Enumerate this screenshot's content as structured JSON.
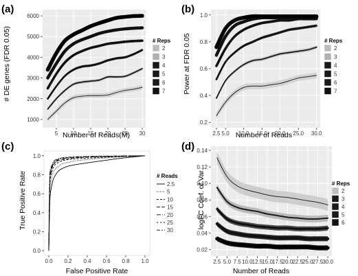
{
  "chart_data": [
    {
      "id": "a",
      "panel_label": "(a)",
      "type": "line",
      "style": "ribbon",
      "background": "#ebebeb",
      "grid": true,
      "xlabel": "Number of Reads(M)",
      "ylabel": "# DE genes (FDR 0.05)",
      "xlim": [
        1,
        31
      ],
      "ylim": [
        600,
        6300
      ],
      "xticks": [
        5,
        10,
        15,
        20,
        25,
        30
      ],
      "xtick_labels": [
        "5",
        "10",
        "15",
        "20",
        "25",
        "30"
      ],
      "yticks": [
        1000,
        2000,
        3000,
        4000,
        5000,
        6000
      ],
      "ytick_labels": [
        "1000",
        "2000",
        "3000",
        "4000",
        "5000",
        "6000"
      ],
      "legend": {
        "title": "# Reps",
        "position": "right",
        "labels": [
          "2",
          "3",
          "4",
          "5",
          "6",
          "7"
        ],
        "colors": [
          "#bdbdbd",
          "#b0b0b0",
          "#1a1a1a",
          "#1a1a1a",
          "#1a1a1a",
          "#111111"
        ]
      },
      "series": [
        {
          "name": "2",
          "color": "#222222",
          "band": "#cfcfcf",
          "width": 1.0,
          "band_half": 110,
          "x": [
            2.5,
            5,
            7.5,
            10,
            12.5,
            15,
            17.5,
            20,
            22.5,
            25,
            27.5,
            30
          ],
          "values": [
            1000,
            1400,
            1800,
            2050,
            2120,
            2150,
            2150,
            2180,
            2300,
            2400,
            2460,
            2550
          ]
        },
        {
          "name": "3",
          "color": "#1a1a1a",
          "band": "#bdbdbd",
          "width": 1.8,
          "band_half": 70,
          "x": [
            2.5,
            5,
            7.5,
            10,
            12.5,
            15,
            17.5,
            20,
            22.5,
            25,
            27.5,
            30
          ],
          "values": [
            1500,
            2000,
            2400,
            2700,
            2800,
            2850,
            2900,
            3050,
            3050,
            3080,
            3250,
            3450
          ]
        },
        {
          "name": "4",
          "color": "#111111",
          "band": "#333333",
          "width": 2.6,
          "band_half": 60,
          "x": [
            2.5,
            5,
            7.5,
            10,
            12.5,
            15,
            17.5,
            20,
            22.5,
            25,
            27.5,
            30
          ],
          "values": [
            2000,
            2600,
            3100,
            3400,
            3550,
            3600,
            3700,
            3850,
            3950,
            4000,
            4150,
            4350
          ]
        },
        {
          "name": "5",
          "color": "#111111",
          "band": "#222222",
          "width": 3.5,
          "band_half": 60,
          "x": [
            2.5,
            5,
            7.5,
            10,
            12.5,
            15,
            17.5,
            20,
            22.5,
            25,
            27.5,
            30
          ],
          "values": [
            2500,
            3200,
            3750,
            4100,
            4300,
            4450,
            4550,
            4650,
            4700,
            4750,
            4780,
            4800
          ]
        },
        {
          "name": "6",
          "color": "#111111",
          "band": "#111111",
          "width": 4.5,
          "band_half": 70,
          "x": [
            2.5,
            5,
            7.5,
            10,
            12.5,
            15,
            17.5,
            20,
            22.5,
            25,
            27.5,
            30
          ],
          "values": [
            3000,
            3700,
            4300,
            4650,
            4850,
            5000,
            5150,
            5250,
            5320,
            5370,
            5400,
            5420
          ]
        },
        {
          "name": "7",
          "color": "#000000",
          "band": "#000000",
          "width": 5.5,
          "band_half": 80,
          "x": [
            2.5,
            5,
            7.5,
            10,
            12.5,
            15,
            17.5,
            20,
            22.5,
            25,
            27.5,
            30
          ],
          "values": [
            3400,
            4200,
            4800,
            5100,
            5300,
            5500,
            5650,
            5780,
            5900,
            5950,
            5990,
            6000
          ]
        }
      ]
    },
    {
      "id": "b",
      "panel_label": "(b)",
      "type": "line",
      "style": "ribbon",
      "background": "#ebebeb",
      "grid": true,
      "xlabel": "Number of Reads",
      "ylabel": "Power at FDR 0.05",
      "xlim": [
        1,
        31
      ],
      "ylim": [
        0.16,
        1.04
      ],
      "xticks": [
        2.5,
        5,
        10,
        15,
        20,
        25,
        30
      ],
      "xtick_labels": [
        "2.5",
        "5.0",
        "10.0",
        "15.0",
        "20.0",
        "25.0",
        "30.0"
      ],
      "yticks": [
        0.2,
        0.4,
        0.6,
        0.8,
        1.0
      ],
      "ytick_labels": [
        "0.2",
        "0.4",
        "0.6",
        "0.8",
        "1.0"
      ],
      "legend": {
        "title": "# Reps",
        "position": "right",
        "labels": [
          "2",
          "3",
          "4",
          "5",
          "6",
          "7"
        ],
        "colors": [
          "#bdbdbd",
          "#b0b0b0",
          "#1a1a1a",
          "#1a1a1a",
          "#1a1a1a",
          "#111111"
        ]
      },
      "series": [
        {
          "name": "2",
          "color": "#222222",
          "band": "#cfcfcf",
          "width": 1.0,
          "band_half": 0.022,
          "x": [
            2.5,
            5,
            7.5,
            10,
            12.5,
            15,
            17.5,
            20,
            22.5,
            25,
            27.5,
            30
          ],
          "values": [
            0.25,
            0.35,
            0.42,
            0.46,
            0.47,
            0.47,
            0.48,
            0.49,
            0.51,
            0.53,
            0.54,
            0.55
          ]
        },
        {
          "name": "3",
          "color": "#1a1a1a",
          "band": "#bdbdbd",
          "width": 1.8,
          "band_half": 0.012,
          "x": [
            2.5,
            5,
            7.5,
            10,
            12.5,
            15,
            17.5,
            20,
            22.5,
            25,
            27.5,
            30
          ],
          "values": [
            0.38,
            0.51,
            0.58,
            0.63,
            0.66,
            0.67,
            0.69,
            0.71,
            0.72,
            0.73,
            0.74,
            0.76
          ]
        },
        {
          "name": "4",
          "color": "#111111",
          "band": "#333333",
          "width": 2.6,
          "band_half": 0.01,
          "x": [
            2.5,
            5,
            7.5,
            10,
            12.5,
            15,
            17.5,
            20,
            22.5,
            25,
            27.5,
            30
          ],
          "values": [
            0.52,
            0.65,
            0.72,
            0.77,
            0.8,
            0.83,
            0.85,
            0.87,
            0.89,
            0.9,
            0.91,
            0.92
          ]
        },
        {
          "name": "5",
          "color": "#111111",
          "band": "#222222",
          "width": 3.5,
          "band_half": 0.01,
          "x": [
            2.5,
            5,
            7.5,
            10,
            12.5,
            15,
            17.5,
            20,
            22.5,
            25,
            27.5,
            30
          ],
          "values": [
            0.62,
            0.75,
            0.84,
            0.89,
            0.92,
            0.94,
            0.95,
            0.96,
            0.96,
            0.97,
            0.97,
            0.97
          ]
        },
        {
          "name": "6",
          "color": "#111111",
          "band": "#111111",
          "width": 4.5,
          "band_half": 0.012,
          "x": [
            2.5,
            5,
            7.5,
            10,
            12.5,
            15,
            17.5,
            20,
            22.5,
            25,
            27.5,
            30
          ],
          "values": [
            0.7,
            0.84,
            0.92,
            0.95,
            0.97,
            0.98,
            0.98,
            0.98,
            0.98,
            0.98,
            0.98,
            0.98
          ]
        },
        {
          "name": "7",
          "color": "#000000",
          "band": "#000000",
          "width": 5.5,
          "band_half": 0.014,
          "x": [
            2.5,
            5,
            7.5,
            10,
            12.5,
            15,
            17.5,
            20,
            22.5,
            25,
            27.5,
            30
          ],
          "values": [
            0.76,
            0.9,
            0.96,
            0.98,
            0.99,
            0.99,
            0.99,
            0.99,
            0.99,
            0.99,
            0.99,
            0.99
          ]
        }
      ]
    },
    {
      "id": "c",
      "panel_label": "(c)",
      "type": "line",
      "style": "roc",
      "background": "#ffffff",
      "grid": false,
      "xlabel": "False Positive Rate",
      "ylabel": "True Positive Rate",
      "xlim": [
        -0.05,
        1.05
      ],
      "ylim": [
        -0.05,
        1.05
      ],
      "xticks": [
        0.0,
        0.2,
        0.4,
        0.6,
        0.8,
        1.0
      ],
      "xtick_labels": [
        "0.0",
        "0.2",
        "0.4",
        "0.6",
        "0.8",
        "1.0"
      ],
      "yticks": [
        0.0,
        0.2,
        0.4,
        0.6,
        0.8,
        1.0
      ],
      "ytick_labels": [
        "0.0",
        "0.2",
        "0.4",
        "0.6",
        "0.8",
        "1.0"
      ],
      "legend": {
        "title": "# Reads",
        "position": "right",
        "labels": [
          "2.5",
          "5",
          "10",
          "15",
          "20",
          "25",
          "30"
        ],
        "dashes": [
          "",
          "1,1.5",
          "3,2",
          "5,2",
          "6,2,1,2",
          "2,3",
          "5,2,2,2"
        ]
      },
      "series": [
        {
          "name": "2.5",
          "color": "#000000",
          "dash": "",
          "x": [
            0.0,
            0.01,
            0.02,
            0.04,
            0.06,
            0.1,
            0.15,
            0.2,
            0.3,
            0.5,
            0.8,
            1.0
          ],
          "values": [
            0.0,
            0.5,
            0.63,
            0.73,
            0.78,
            0.84,
            0.87,
            0.89,
            0.91,
            0.94,
            0.98,
            1.0
          ]
        },
        {
          "name": "5",
          "color": "#000000",
          "dash": "1,1.5",
          "x": [
            0.0,
            0.01,
            0.02,
            0.04,
            0.06,
            0.1,
            0.15,
            0.2,
            0.3,
            0.5,
            0.8,
            1.0
          ],
          "values": [
            0.0,
            0.6,
            0.72,
            0.81,
            0.85,
            0.89,
            0.92,
            0.93,
            0.95,
            0.97,
            0.99,
            1.0
          ]
        },
        {
          "name": "10",
          "color": "#000000",
          "dash": "3,2",
          "x": [
            0.0,
            0.01,
            0.02,
            0.04,
            0.06,
            0.1,
            0.15,
            0.2,
            0.3,
            0.5,
            0.8,
            1.0
          ],
          "values": [
            0.0,
            0.66,
            0.78,
            0.86,
            0.9,
            0.93,
            0.95,
            0.96,
            0.97,
            0.98,
            0.995,
            1.0
          ]
        },
        {
          "name": "15",
          "color": "#000000",
          "dash": "5,2",
          "x": [
            0.0,
            0.01,
            0.02,
            0.04,
            0.06,
            0.1,
            0.15,
            0.2,
            0.3,
            0.5,
            0.8,
            1.0
          ],
          "values": [
            0.0,
            0.7,
            0.81,
            0.89,
            0.92,
            0.95,
            0.96,
            0.97,
            0.98,
            0.99,
            0.997,
            1.0
          ]
        },
        {
          "name": "20",
          "color": "#000000",
          "dash": "6,2,1,2",
          "x": [
            0.0,
            0.01,
            0.02,
            0.04,
            0.06,
            0.1,
            0.15,
            0.2,
            0.3,
            0.5,
            0.8,
            1.0
          ],
          "values": [
            0.0,
            0.72,
            0.83,
            0.9,
            0.93,
            0.96,
            0.97,
            0.98,
            0.985,
            0.99,
            0.998,
            1.0
          ]
        },
        {
          "name": "25",
          "color": "#000000",
          "dash": "2,3",
          "x": [
            0.0,
            0.01,
            0.02,
            0.04,
            0.06,
            0.1,
            0.15,
            0.2,
            0.3,
            0.5,
            0.8,
            1.0
          ],
          "values": [
            0.0,
            0.74,
            0.85,
            0.91,
            0.94,
            0.965,
            0.975,
            0.982,
            0.988,
            0.993,
            0.998,
            1.0
          ]
        },
        {
          "name": "30",
          "color": "#000000",
          "dash": "5,2,2,2",
          "x": [
            0.0,
            0.01,
            0.02,
            0.04,
            0.06,
            0.1,
            0.15,
            0.2,
            0.3,
            0.5,
            0.8,
            1.0
          ],
          "values": [
            0.0,
            0.76,
            0.86,
            0.92,
            0.95,
            0.97,
            0.98,
            0.985,
            0.99,
            0.995,
            0.999,
            1.0
          ]
        }
      ]
    },
    {
      "id": "d",
      "panel_label": "(d)",
      "type": "line",
      "style": "ribbon",
      "background": "#ebebeb",
      "grid": true,
      "xlabel": "Number of Reads",
      "ylabel": "logFC Coef. of Var.",
      "xlim": [
        1,
        31
      ],
      "ylim": [
        0.012,
        0.145
      ],
      "xticks": [
        2.5,
        5,
        7.5,
        10,
        12.5,
        15,
        17.5,
        20,
        22.5,
        25,
        27.5,
        30
      ],
      "xtick_labels": [
        "2.5",
        "5.0",
        "7.5",
        "10.0",
        "12.5",
        "15.0",
        "17.5",
        "20.0",
        "22.5",
        "25.0",
        "27.5",
        "30.0"
      ],
      "yticks": [
        0.02,
        0.04,
        0.06,
        0.08,
        0.1,
        0.12,
        0.14
      ],
      "ytick_labels": [
        "0.02",
        "0.04",
        "0.06",
        "0.08",
        "0.10",
        "0.12",
        "0.14"
      ],
      "legend": {
        "title": "# Reps",
        "position": "right",
        "labels": [
          "2",
          "3",
          "4",
          "5",
          "6"
        ],
        "colors": [
          "#bdbdbd",
          "#1a1a1a",
          "#1a1a1a",
          "#1a1a1a",
          "#111111"
        ]
      },
      "series": [
        {
          "name": "2",
          "color": "#222222",
          "band": "#c8c8c8",
          "width": 1.0,
          "band_half": 0.007,
          "x": [
            2.5,
            5,
            7.5,
            10,
            12.5,
            15,
            17.5,
            20,
            22.5,
            25,
            27.5,
            30
          ],
          "values": [
            0.131,
            0.108,
            0.097,
            0.092,
            0.089,
            0.086,
            0.084,
            0.083,
            0.081,
            0.079,
            0.077,
            0.074
          ]
        },
        {
          "name": "3",
          "color": "#1a1a1a",
          "band": "#b0b0b0",
          "width": 2.0,
          "band_half": 0.004,
          "x": [
            2.5,
            5,
            7.5,
            10,
            12.5,
            15,
            17.5,
            20,
            22.5,
            25,
            27.5,
            30
          ],
          "values": [
            0.095,
            0.078,
            0.071,
            0.068,
            0.066,
            0.063,
            0.061,
            0.059,
            0.058,
            0.057,
            0.057,
            0.058
          ]
        },
        {
          "name": "4",
          "color": "#111111",
          "band": "#333333",
          "width": 3.0,
          "band_half": 0.003,
          "x": [
            2.5,
            5,
            7.5,
            10,
            12.5,
            15,
            17.5,
            20,
            22.5,
            25,
            27.5,
            30
          ],
          "values": [
            0.069,
            0.057,
            0.052,
            0.05,
            0.048,
            0.047,
            0.046,
            0.046,
            0.045,
            0.045,
            0.045,
            0.046
          ]
        },
        {
          "name": "5",
          "color": "#111111",
          "band": "#111111",
          "width": 4.0,
          "band_half": 0.003,
          "x": [
            2.5,
            5,
            7.5,
            10,
            12.5,
            15,
            17.5,
            20,
            22.5,
            25,
            27.5,
            30
          ],
          "values": [
            0.051,
            0.042,
            0.039,
            0.037,
            0.036,
            0.035,
            0.034,
            0.034,
            0.034,
            0.033,
            0.033,
            0.033
          ]
        },
        {
          "name": "6",
          "color": "#000000",
          "band": "#000000",
          "width": 5.0,
          "band_half": 0.003,
          "x": [
            2.5,
            5,
            7.5,
            10,
            12.5,
            15,
            17.5,
            20,
            22.5,
            25,
            27.5,
            30
          ],
          "values": [
            0.033,
            0.028,
            0.026,
            0.025,
            0.024,
            0.024,
            0.023,
            0.023,
            0.023,
            0.023,
            0.022,
            0.022
          ]
        }
      ]
    }
  ]
}
